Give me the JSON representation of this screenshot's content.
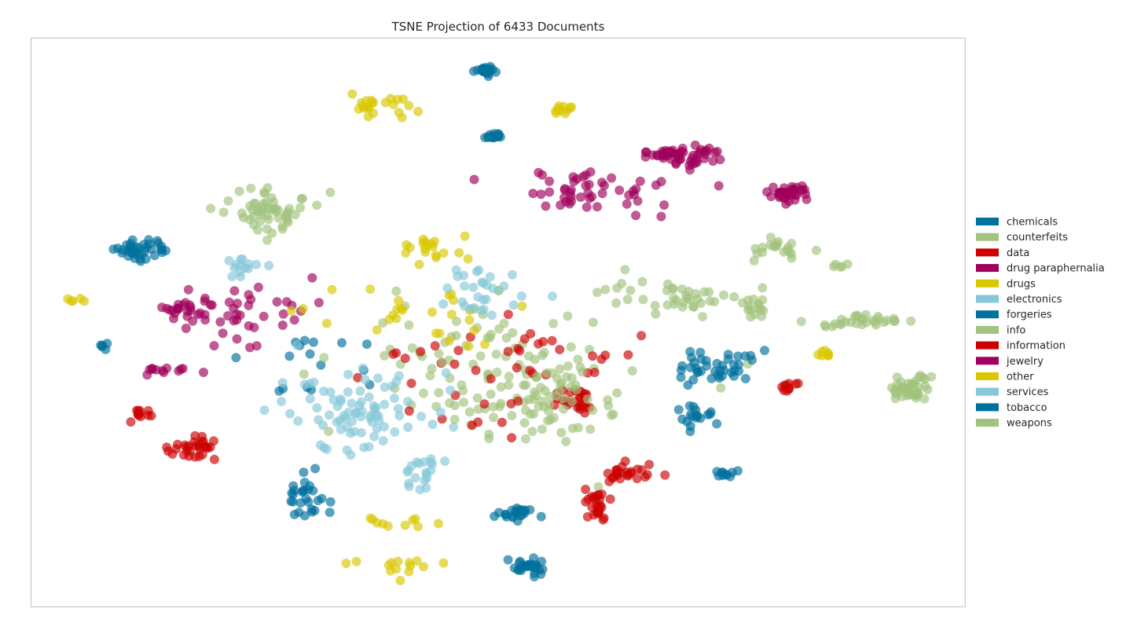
{
  "chart_data": {
    "type": "scatter",
    "title": "TSNE Projection of 6433 Documents",
    "xlabel": "",
    "ylabel": "",
    "grid": false,
    "legend_position": "right",
    "xlim": [
      0,
      100
    ],
    "ylim": [
      0,
      100
    ],
    "marker_opacity": 0.65,
    "series": [
      {
        "name": "chemicals",
        "color": "#00709c",
        "clusters": [
          {
            "cx": 48.6,
            "cy": 94.2,
            "sx": 0.5,
            "sy": 0.4,
            "n": 26
          },
          {
            "cx": 11.8,
            "cy": 62.7,
            "sx": 1.5,
            "sy": 1.0,
            "n": 38
          },
          {
            "cx": 31.9,
            "cy": 42.4,
            "sx": 4.0,
            "sy": 3.5,
            "n": 16
          }
        ]
      },
      {
        "name": "counterfeits",
        "color": "#a1c37c",
        "clusters": [
          {
            "cx": 25.0,
            "cy": 69.2,
            "sx": 2.5,
            "sy": 1.8,
            "n": 55
          },
          {
            "cx": 50.0,
            "cy": 43.1,
            "sx": 8.0,
            "sy": 6.0,
            "n": 90
          },
          {
            "cx": 80.3,
            "cy": 63.2,
            "sx": 1.5,
            "sy": 1.0,
            "n": 20
          }
        ]
      },
      {
        "name": "data",
        "color": "#cc0000",
        "clusters": [
          {
            "cx": 17.6,
            "cy": 28.0,
            "sx": 1.2,
            "sy": 1.0,
            "n": 30
          },
          {
            "cx": 11.8,
            "cy": 33.7,
            "sx": 0.6,
            "sy": 0.5,
            "n": 12
          },
          {
            "cx": 50.0,
            "cy": 43.1,
            "sx": 7.0,
            "sy": 5.0,
            "n": 45
          }
        ]
      },
      {
        "name": "drug paraphernalia",
        "color": "#a0005b",
        "clusters": [
          {
            "cx": 60.0,
            "cy": 73.0,
            "sx": 4.0,
            "sy": 1.8,
            "n": 50
          },
          {
            "cx": 70.8,
            "cy": 79.1,
            "sx": 1.5,
            "sy": 1.0,
            "n": 30
          },
          {
            "cx": 81.0,
            "cy": 72.2,
            "sx": 1.2,
            "sy": 0.8,
            "n": 20
          },
          {
            "cx": 22.5,
            "cy": 51.1,
            "sx": 5.0,
            "sy": 3.0,
            "n": 45
          }
        ]
      },
      {
        "name": "drugs",
        "color": "#d9c800",
        "clusters": [
          {
            "cx": 36.0,
            "cy": 88.0,
            "sx": 2.0,
            "sy": 0.9,
            "n": 22
          },
          {
            "cx": 56.5,
            "cy": 87.0,
            "sx": 0.8,
            "sy": 0.6,
            "n": 10
          },
          {
            "cx": 42.4,
            "cy": 63.2,
            "sx": 1.6,
            "sy": 1.0,
            "n": 18
          },
          {
            "cx": 39.0,
            "cy": 7.5,
            "sx": 3.0,
            "sy": 1.3,
            "n": 14
          }
        ]
      },
      {
        "name": "electronics",
        "color": "#86c7d9",
        "clusters": [
          {
            "cx": 34.5,
            "cy": 35.0,
            "sx": 4.5,
            "sy": 3.5,
            "n": 60
          },
          {
            "cx": 41.5,
            "cy": 24.0,
            "sx": 1.5,
            "sy": 2.0,
            "n": 20
          }
        ]
      },
      {
        "name": "forgeries",
        "color": "#00709c",
        "clusters": [
          {
            "cx": 49.5,
            "cy": 82.8,
            "sx": 0.5,
            "sy": 0.4,
            "n": 16
          },
          {
            "cx": 73.5,
            "cy": 42.0,
            "sx": 2.0,
            "sy": 1.5,
            "n": 40
          },
          {
            "cx": 71.0,
            "cy": 33.5,
            "sx": 1.0,
            "sy": 1.0,
            "n": 18
          },
          {
            "cx": 29.5,
            "cy": 19.3,
            "sx": 0.9,
            "sy": 2.0,
            "n": 28
          }
        ]
      },
      {
        "name": "info",
        "color": "#a1c37c",
        "clusters": [
          {
            "cx": 69.5,
            "cy": 55.0,
            "sx": 3.5,
            "sy": 1.5,
            "n": 40
          },
          {
            "cx": 77.0,
            "cy": 52.0,
            "sx": 1.2,
            "sy": 0.8,
            "n": 14
          },
          {
            "cx": 94.0,
            "cy": 39.0,
            "sx": 1.0,
            "sy": 1.2,
            "n": 22
          },
          {
            "cx": 90.0,
            "cy": 50.5,
            "sx": 2.0,
            "sy": 0.5,
            "n": 14
          }
        ]
      },
      {
        "name": "information",
        "color": "#cc0000",
        "clusters": [
          {
            "cx": 58.5,
            "cy": 36.5,
            "sx": 1.2,
            "sy": 1.5,
            "n": 26
          },
          {
            "cx": 64.0,
            "cy": 24.0,
            "sx": 1.5,
            "sy": 0.9,
            "n": 24
          },
          {
            "cx": 60.5,
            "cy": 18.0,
            "sx": 1.0,
            "sy": 1.6,
            "n": 26
          },
          {
            "cx": 81.0,
            "cy": 38.5,
            "sx": 1.0,
            "sy": 0.6,
            "n": 10
          }
        ]
      },
      {
        "name": "jewelry",
        "color": "#a0005b",
        "clusters": [
          {
            "cx": 67.8,
            "cy": 79.8,
            "sx": 1.4,
            "sy": 0.6,
            "n": 26
          },
          {
            "cx": 81.5,
            "cy": 72.9,
            "sx": 1.0,
            "sy": 0.6,
            "n": 18
          },
          {
            "cx": 15.6,
            "cy": 52.5,
            "sx": 0.6,
            "sy": 0.7,
            "n": 14
          },
          {
            "cx": 14.0,
            "cy": 41.5,
            "sx": 1.5,
            "sy": 0.4,
            "n": 12
          }
        ]
      },
      {
        "name": "other",
        "color": "#d9c800",
        "clusters": [
          {
            "cx": 5.0,
            "cy": 53.8,
            "sx": 0.4,
            "sy": 0.4,
            "n": 5
          },
          {
            "cx": 42.0,
            "cy": 52.0,
            "sx": 6.0,
            "sy": 4.0,
            "n": 30
          },
          {
            "cx": 84.6,
            "cy": 44.5,
            "sx": 0.6,
            "sy": 0.4,
            "n": 8
          },
          {
            "cx": 40.5,
            "cy": 15.5,
            "sx": 3.0,
            "sy": 1.0,
            "n": 10
          }
        ]
      },
      {
        "name": "services",
        "color": "#86c7d9",
        "clusters": [
          {
            "cx": 48.5,
            "cy": 55.5,
            "sx": 3.0,
            "sy": 2.0,
            "n": 30
          },
          {
            "cx": 22.3,
            "cy": 59.6,
            "sx": 1.2,
            "sy": 0.8,
            "n": 14
          },
          {
            "cx": 36.5,
            "cy": 32.0,
            "sx": 3.0,
            "sy": 2.0,
            "n": 22
          }
        ]
      },
      {
        "name": "tobacco",
        "color": "#00709c",
        "clusters": [
          {
            "cx": 52.0,
            "cy": 16.5,
            "sx": 0.9,
            "sy": 0.5,
            "n": 22
          },
          {
            "cx": 52.8,
            "cy": 7.0,
            "sx": 1.0,
            "sy": 0.8,
            "n": 28
          },
          {
            "cx": 7.8,
            "cy": 46.0,
            "sx": 0.3,
            "sy": 0.3,
            "n": 5
          },
          {
            "cx": 74.4,
            "cy": 23.4,
            "sx": 0.5,
            "sy": 0.5,
            "n": 10
          }
        ]
      },
      {
        "name": "weapons",
        "color": "#a1c37c",
        "clusters": [
          {
            "cx": 94.3,
            "cy": 38.0,
            "sx": 1.0,
            "sy": 0.8,
            "n": 20
          },
          {
            "cx": 89.5,
            "cy": 50.0,
            "sx": 2.5,
            "sy": 0.4,
            "n": 16
          },
          {
            "cx": 87.0,
            "cy": 60.0,
            "sx": 0.5,
            "sy": 0.3,
            "n": 5
          },
          {
            "cx": 54.5,
            "cy": 36.0,
            "sx": 5.0,
            "sy": 4.0,
            "n": 60
          }
        ]
      }
    ]
  }
}
